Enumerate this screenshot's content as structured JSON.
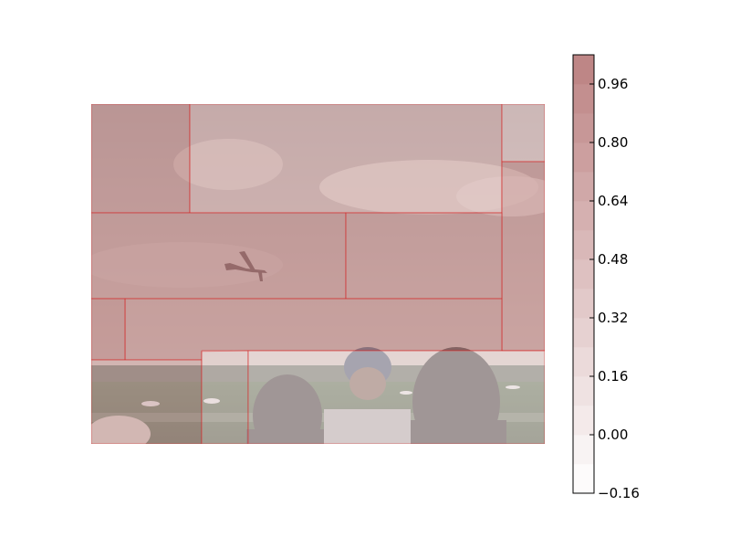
{
  "chart_data": {
    "type": "heatmap",
    "description_overlay": "saliency segments over photograph",
    "colorbar": {
      "ticks": [
        -0.16,
        0.0,
        0.16,
        0.32,
        0.48,
        0.64,
        0.8,
        0.96
      ],
      "tick_labels": [
        "−0.16",
        "0.00",
        "0.16",
        "0.32",
        "0.48",
        "0.64",
        "0.80",
        "0.96"
      ],
      "range": [
        -0.16,
        1.04
      ],
      "levels": 15,
      "colormap": "white-to-red"
    },
    "segments": [
      {
        "name": "upper-left-sky",
        "value": 0.88
      },
      {
        "name": "upper-right-sky",
        "value": 0.56
      },
      {
        "name": "top-right-corner",
        "value": 0.36
      },
      {
        "name": "right-edge-sky",
        "value": 0.86
      },
      {
        "name": "middle-sky-left",
        "value": 0.9
      },
      {
        "name": "middle-sky-right",
        "value": 0.87
      },
      {
        "name": "lower-sky-band",
        "value": 0.9
      },
      {
        "name": "left-edge-block",
        "value": 0.98
      },
      {
        "name": "horizon-left",
        "value": 0.62
      },
      {
        "name": "ground-center",
        "value": 0.2
      },
      {
        "name": "crowd-right",
        "value": 0.1
      }
    ]
  }
}
